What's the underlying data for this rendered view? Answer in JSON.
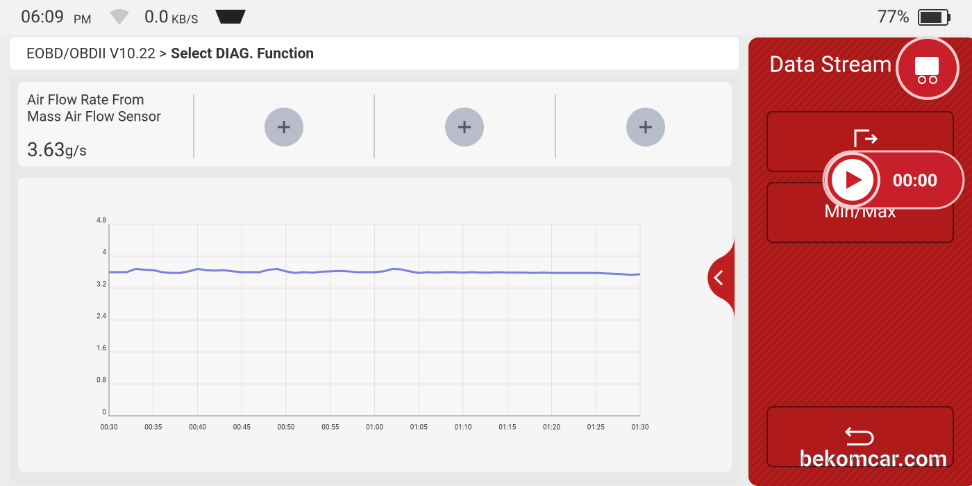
{
  "status_bar": {
    "time": "06:09",
    "meridiem": "PM",
    "speed": "0.0",
    "speed_unit": "KB/S",
    "battery": "77%"
  },
  "header": {
    "path": "EOBD/OBDII V10.22 >",
    "title": "Select DIAG. Function"
  },
  "sensor_panel": {
    "name_lines": [
      "Air Flow Rate From",
      "Mass Air Flow Sensor"
    ],
    "value": "3.63",
    "unit": "g/s"
  },
  "chart_data": {
    "type": "line",
    "color": "#7b82d8",
    "grid": true,
    "x": [
      30,
      31,
      32,
      33,
      34,
      35,
      36,
      37,
      38,
      39,
      40,
      41,
      42,
      43,
      44,
      45,
      46,
      47,
      48,
      49,
      50,
      51,
      52,
      53,
      54,
      55,
      56,
      57,
      58,
      59,
      60,
      61,
      62,
      63,
      64,
      65,
      66,
      67,
      68,
      69,
      70,
      71,
      72,
      73,
      74,
      75,
      76,
      77,
      78,
      79,
      80,
      81,
      82,
      83,
      84,
      85,
      86,
      87,
      88,
      89,
      90
    ],
    "values": [
      3.6,
      3.6,
      3.6,
      3.68,
      3.66,
      3.65,
      3.6,
      3.58,
      3.58,
      3.62,
      3.68,
      3.65,
      3.64,
      3.65,
      3.62,
      3.6,
      3.6,
      3.6,
      3.66,
      3.68,
      3.62,
      3.58,
      3.6,
      3.59,
      3.61,
      3.62,
      3.63,
      3.62,
      3.6,
      3.6,
      3.6,
      3.62,
      3.68,
      3.67,
      3.62,
      3.58,
      3.6,
      3.59,
      3.6,
      3.6,
      3.59,
      3.6,
      3.59,
      3.59,
      3.6,
      3.59,
      3.59,
      3.59,
      3.58,
      3.59,
      3.58,
      3.58,
      3.58,
      3.58,
      3.58,
      3.58,
      3.57,
      3.56,
      3.55,
      3.53,
      3.55
    ],
    "xlim": [
      30,
      90
    ],
    "xticks": [
      {
        "value": 30,
        "label": "00:30"
      },
      {
        "value": 35,
        "label": "00:35"
      },
      {
        "value": 40,
        "label": "00:40"
      },
      {
        "value": 45,
        "label": "00:45"
      },
      {
        "value": 50,
        "label": "00:50"
      },
      {
        "value": 55,
        "label": "00:55"
      },
      {
        "value": 60,
        "label": "01:00"
      },
      {
        "value": 65,
        "label": "01:05"
      },
      {
        "value": 70,
        "label": "01:10"
      },
      {
        "value": 75,
        "label": "01:15"
      },
      {
        "value": 80,
        "label": "01:20"
      },
      {
        "value": 85,
        "label": "01:25"
      },
      {
        "value": 90,
        "label": "01:30"
      }
    ],
    "ylim": [
      0,
      4.8
    ],
    "yticks": [
      0,
      0.8,
      1.6,
      2.4,
      3.2,
      4,
      4.8
    ]
  },
  "side_panel": {
    "title": "Data Stream",
    "record_time": "00:00",
    "min_max": "Min/Max"
  },
  "watermark": "bekomcar.com"
}
